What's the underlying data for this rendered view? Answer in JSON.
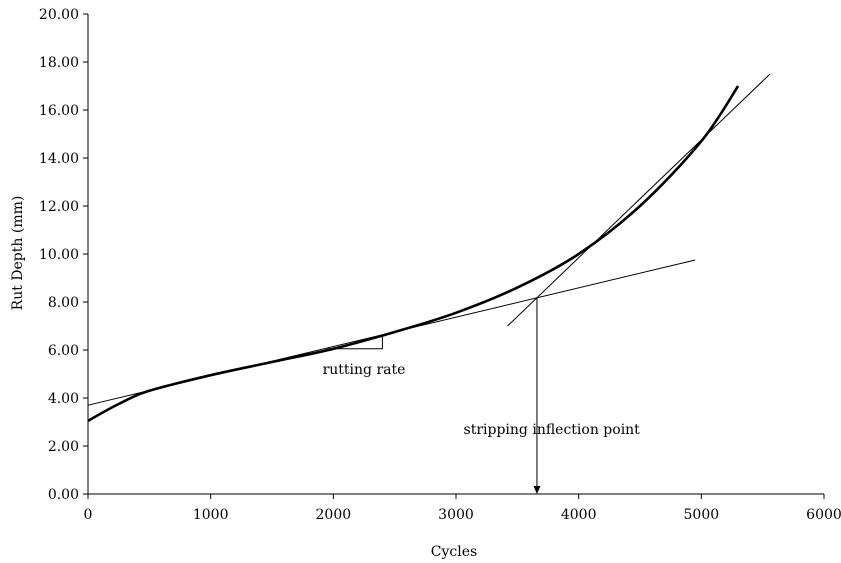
{
  "chart_data": {
    "type": "line",
    "title": "",
    "xlabel": "Cycles",
    "ylabel": "Rut Depth (mm)",
    "xlim": [
      0,
      6000
    ],
    "ylim": [
      0,
      20
    ],
    "x_ticks": [
      0,
      1000,
      2000,
      3000,
      4000,
      5000,
      6000
    ],
    "x_tick_labels": [
      "0",
      "1000",
      "2000",
      "3000",
      "4000",
      "5000",
      "6000"
    ],
    "y_ticks": [
      0,
      2,
      4,
      6,
      8,
      10,
      12,
      14,
      16,
      18,
      20
    ],
    "y_tick_labels": [
      "0.00",
      "2.00",
      "4.00",
      "6.00",
      "8.00",
      "10.00",
      "12.00",
      "14.00",
      "16.00",
      "18.00",
      "20.00"
    ],
    "grid": false,
    "legend": "none",
    "series": [
      {
        "style": "thick",
        "x": [
          0,
          250,
          500,
          1000,
          1500,
          2000,
          2500,
          3000,
          3500,
          4000,
          4500,
          5000,
          5300
        ],
        "y": [
          3.05,
          3.75,
          4.3,
          4.95,
          5.5,
          6.05,
          6.75,
          7.55,
          8.6,
          10.0,
          12.0,
          14.7,
          17.0
        ]
      },
      {
        "style": "thin",
        "x": [
          0,
          4950
        ],
        "y": [
          3.7,
          9.75
        ]
      },
      {
        "style": "thin",
        "x": [
          3420,
          5560
        ],
        "y": [
          7.0,
          17.5
        ]
      }
    ],
    "rate_marker": {
      "x": [
        1950,
        2400,
        2400
      ],
      "y": [
        6.05,
        6.05,
        6.6
      ]
    },
    "annotations": [
      {
        "text": "rutting rate",
        "x": 2250,
        "y": 5.0
      },
      {
        "text": "stripping inflection point",
        "x": 3780,
        "y": 2.5
      }
    ],
    "inflection_arrow": {
      "x": 3660,
      "y_from": 8.2,
      "y_to": 0
    }
  }
}
